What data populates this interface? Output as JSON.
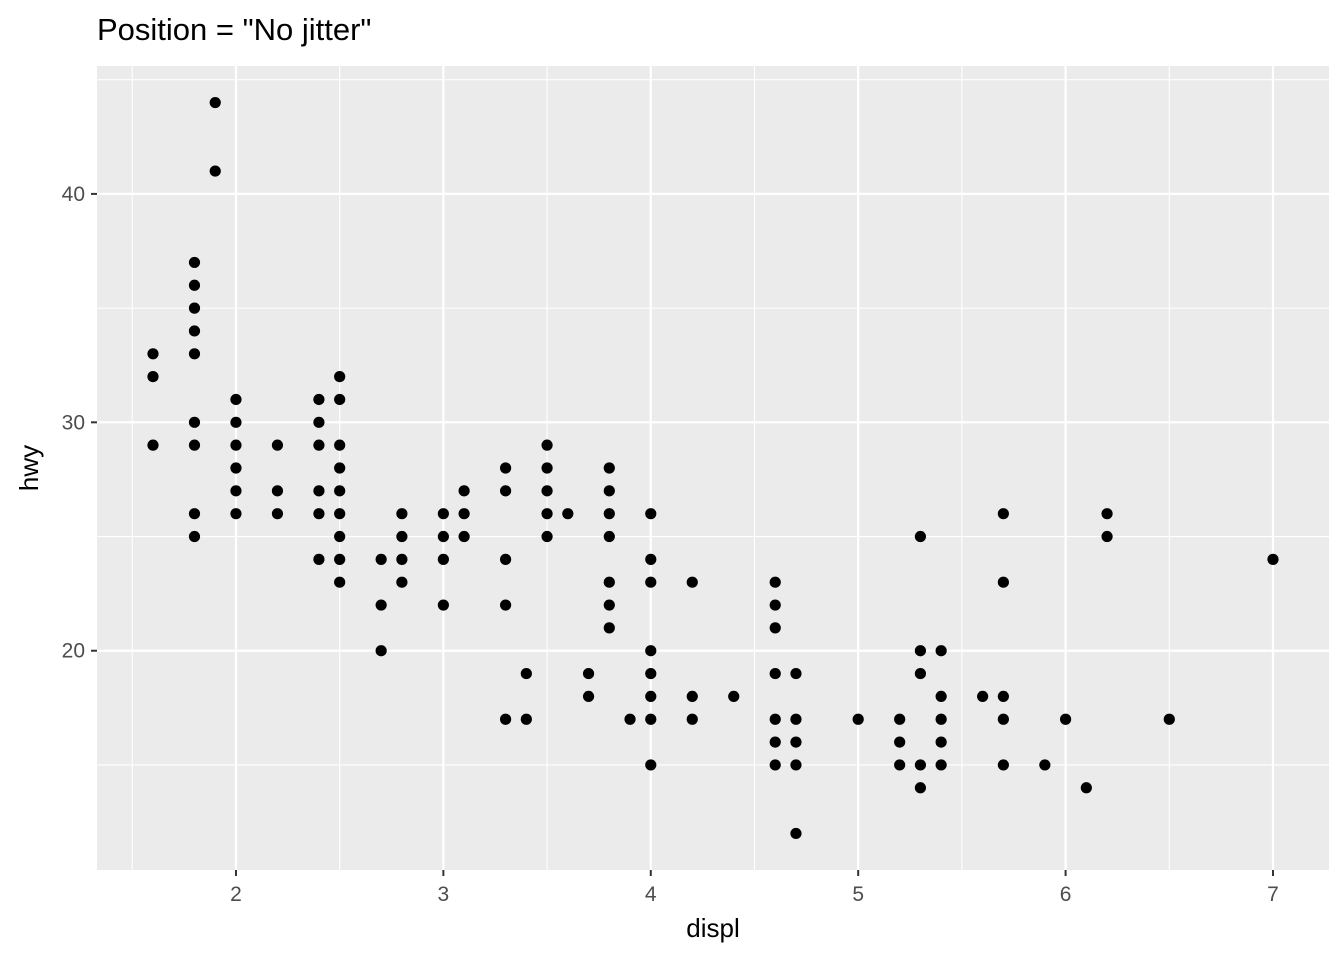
{
  "chart_data": {
    "type": "scatter",
    "title": "Position = \"No jitter\"",
    "xlabel": "displ",
    "ylabel": "hwy",
    "xlim": [
      1.33,
      7.27
    ],
    "ylim": [
      10.4,
      45.6
    ],
    "x_ticks": [
      2,
      3,
      4,
      5,
      6,
      7
    ],
    "y_ticks": [
      20,
      30,
      40
    ],
    "grid": true,
    "point_color": "#000000",
    "panel_background": "#ebebeb",
    "points": [
      [
        1.9,
        44
      ],
      [
        1.9,
        41
      ],
      [
        1.8,
        37
      ],
      [
        1.8,
        36
      ],
      [
        1.8,
        35
      ],
      [
        1.8,
        34
      ],
      [
        1.8,
        33
      ],
      [
        1.8,
        30
      ],
      [
        1.8,
        29
      ],
      [
        1.8,
        26
      ],
      [
        1.8,
        25
      ],
      [
        1.6,
        33
      ],
      [
        1.6,
        32
      ],
      [
        1.6,
        29
      ],
      [
        2.0,
        31
      ],
      [
        2.0,
        30
      ],
      [
        2.0,
        29
      ],
      [
        2.0,
        28
      ],
      [
        2.0,
        27
      ],
      [
        2.0,
        26
      ],
      [
        2.2,
        29
      ],
      [
        2.2,
        27
      ],
      [
        2.2,
        26
      ],
      [
        2.4,
        31
      ],
      [
        2.4,
        30
      ],
      [
        2.4,
        29
      ],
      [
        2.4,
        27
      ],
      [
        2.4,
        26
      ],
      [
        2.4,
        24
      ],
      [
        2.5,
        32
      ],
      [
        2.5,
        31
      ],
      [
        2.5,
        29
      ],
      [
        2.5,
        28
      ],
      [
        2.5,
        27
      ],
      [
        2.5,
        26
      ],
      [
        2.5,
        25
      ],
      [
        2.5,
        24
      ],
      [
        2.5,
        23
      ],
      [
        2.7,
        24
      ],
      [
        2.7,
        22
      ],
      [
        2.7,
        20
      ],
      [
        2.8,
        26
      ],
      [
        2.8,
        25
      ],
      [
        2.8,
        24
      ],
      [
        2.8,
        23
      ],
      [
        3.0,
        26
      ],
      [
        3.0,
        25
      ],
      [
        3.0,
        24
      ],
      [
        3.0,
        22
      ],
      [
        3.1,
        27
      ],
      [
        3.1,
        26
      ],
      [
        3.1,
        25
      ],
      [
        3.3,
        28
      ],
      [
        3.3,
        27
      ],
      [
        3.3,
        24
      ],
      [
        3.3,
        22
      ],
      [
        3.3,
        17
      ],
      [
        3.4,
        19
      ],
      [
        3.4,
        17
      ],
      [
        3.5,
        29
      ],
      [
        3.5,
        28
      ],
      [
        3.5,
        27
      ],
      [
        3.5,
        26
      ],
      [
        3.5,
        25
      ],
      [
        3.6,
        26
      ],
      [
        3.7,
        19
      ],
      [
        3.7,
        18
      ],
      [
        3.8,
        28
      ],
      [
        3.8,
        27
      ],
      [
        3.8,
        26
      ],
      [
        3.8,
        25
      ],
      [
        3.8,
        23
      ],
      [
        3.8,
        22
      ],
      [
        3.8,
        21
      ],
      [
        3.9,
        17
      ],
      [
        4.0,
        26
      ],
      [
        4.0,
        24
      ],
      [
        4.0,
        23
      ],
      [
        4.0,
        20
      ],
      [
        4.0,
        19
      ],
      [
        4.0,
        18
      ],
      [
        4.0,
        17
      ],
      [
        4.0,
        15
      ],
      [
        4.2,
        23
      ],
      [
        4.2,
        18
      ],
      [
        4.2,
        17
      ],
      [
        4.4,
        18
      ],
      [
        4.6,
        23
      ],
      [
        4.6,
        22
      ],
      [
        4.6,
        21
      ],
      [
        4.6,
        19
      ],
      [
        4.6,
        17
      ],
      [
        4.6,
        16
      ],
      [
        4.6,
        15
      ],
      [
        4.7,
        19
      ],
      [
        4.7,
        17
      ],
      [
        4.7,
        16
      ],
      [
        4.7,
        15
      ],
      [
        4.7,
        12
      ],
      [
        5.0,
        17
      ],
      [
        5.2,
        17
      ],
      [
        5.2,
        16
      ],
      [
        5.2,
        15
      ],
      [
        5.3,
        25
      ],
      [
        5.3,
        20
      ],
      [
        5.3,
        19
      ],
      [
        5.3,
        15
      ],
      [
        5.3,
        14
      ],
      [
        5.4,
        20
      ],
      [
        5.4,
        18
      ],
      [
        5.4,
        17
      ],
      [
        5.4,
        16
      ],
      [
        5.4,
        15
      ],
      [
        5.6,
        18
      ],
      [
        5.7,
        26
      ],
      [
        5.7,
        23
      ],
      [
        5.7,
        18
      ],
      [
        5.7,
        17
      ],
      [
        5.7,
        15
      ],
      [
        5.9,
        15
      ],
      [
        6.0,
        17
      ],
      [
        6.1,
        14
      ],
      [
        6.2,
        26
      ],
      [
        6.2,
        25
      ],
      [
        6.5,
        17
      ],
      [
        7.0,
        24
      ]
    ]
  }
}
